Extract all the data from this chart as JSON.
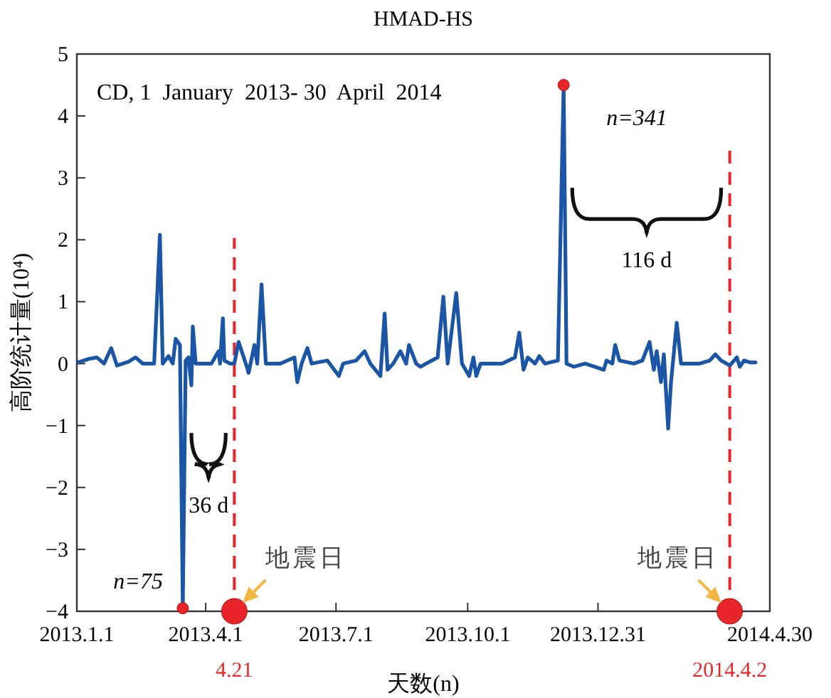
{
  "chart_data": {
    "type": "line",
    "title": "HMAD-HS",
    "xlabel": "天数(n)",
    "ylabel": "高阶统计量(10⁴)",
    "xlim": [
      "2013-01-01",
      "2014-04-30"
    ],
    "ylim": [
      -4,
      5
    ],
    "xticks": [
      {
        "value": "2013-01-01",
        "label": "2013.1.1"
      },
      {
        "value": "2013-04-01",
        "label": "2013.4.1"
      },
      {
        "value": "2013-07-01",
        "label": "2013.7.1"
      },
      {
        "value": "2013-10-01",
        "label": "2013.10.1"
      },
      {
        "value": "2013-12-31",
        "label": "2013.12.31"
      },
      {
        "value": "2014-04-30",
        "label": "2014.4.30"
      }
    ],
    "yticks": [
      -4,
      -3,
      -2,
      -1,
      0,
      1,
      2,
      3,
      4,
      5
    ],
    "series": [
      {
        "type": "line",
        "color": "#1b55a5",
        "x": [
          "2013-01-02",
          "2013-01-10",
          "2013-01-15",
          "2013-01-20",
          "2013-01-25",
          "2013-01-29",
          "2013-02-06",
          "2013-02-11",
          "2013-02-16",
          "2013-02-24",
          "2013-02-28",
          "2013-03-02",
          "2013-03-06",
          "2013-03-09",
          "2013-03-11",
          "2013-03-14",
          "2013-03-16",
          "2013-03-18",
          "2013-03-20",
          "2013-03-22",
          "2013-03-23",
          "2013-03-25",
          "2013-03-30",
          "2013-04-05",
          "2013-04-10",
          "2013-04-11",
          "2013-04-13",
          "2013-04-14",
          "2013-04-18",
          "2013-04-21",
          "2013-04-24",
          "2013-04-29",
          "2013-05-01",
          "2013-05-05",
          "2013-05-07",
          "2013-05-10",
          "2013-05-13",
          "2013-05-23",
          "2013-06-02",
          "2013-06-04",
          "2013-06-07",
          "2013-06-11",
          "2013-06-14",
          "2013-06-25",
          "2013-07-03",
          "2013-07-06",
          "2013-07-15",
          "2013-07-21",
          "2013-07-25",
          "2013-08-01",
          "2013-08-04",
          "2013-08-06",
          "2013-08-10",
          "2013-08-15",
          "2013-08-19",
          "2013-08-21",
          "2013-08-26",
          "2013-08-29",
          "2013-09-02",
          "2013-09-10",
          "2013-09-14",
          "2013-09-17",
          "2013-09-23",
          "2013-09-27",
          "2013-10-02",
          "2013-10-05",
          "2013-10-07",
          "2013-10-10",
          "2013-10-25",
          "2013-11-03",
          "2013-11-06",
          "2013-11-09",
          "2013-11-12",
          "2013-11-17",
          "2013-11-20",
          "2013-11-24",
          "2013-12-03",
          "2013-12-07",
          "2013-12-09",
          "2013-12-14",
          "2013-12-22",
          "2014-01-04",
          "2014-01-06",
          "2014-01-10",
          "2014-01-12",
          "2014-01-15",
          "2014-01-25",
          "2014-01-31",
          "2014-02-05",
          "2014-02-08",
          "2014-02-10",
          "2014-02-13",
          "2014-02-15",
          "2014-02-18",
          "2014-02-20",
          "2014-02-24",
          "2014-02-27",
          "2014-03-12",
          "2014-03-19",
          "2014-03-23",
          "2014-03-27",
          "2014-04-02",
          "2014-04-07",
          "2014-04-09",
          "2014-04-12",
          "2014-04-16",
          "2014-04-20"
        ],
        "values": [
          0.02,
          0.08,
          0.1,
          0,
          0.25,
          -0.03,
          0.03,
          0.1,
          0,
          0,
          2.08,
          0,
          0.12,
          0,
          0.4,
          0.3,
          -3.95,
          0.05,
          0.1,
          -0.35,
          0.6,
          0,
          0,
          0,
          0.2,
          0,
          0.73,
          0.05,
          0,
          0,
          0.35,
          0,
          -0.15,
          0.3,
          0,
          1.28,
          0,
          0,
          0.1,
          -0.3,
          0,
          0.25,
          0,
          0.05,
          -0.2,
          0,
          0.05,
          0.2,
          0,
          -0.2,
          0.81,
          -0.1,
          0,
          0.2,
          0,
          0.3,
          0,
          -0.05,
          0,
          0.1,
          1.08,
          0,
          1.14,
          0,
          -0.2,
          0.1,
          -0.2,
          0,
          0,
          0.1,
          0.5,
          -0.1,
          0.1,
          0,
          0.12,
          0,
          0.05,
          4.5,
          0,
          -0.05,
          0,
          -0.1,
          0.05,
          0,
          0.3,
          0.05,
          0,
          0.05,
          0.35,
          -0.1,
          0.2,
          -0.3,
          0.15,
          -1.05,
          -0.3,
          0.66,
          0,
          0,
          0.05,
          0.15,
          0.05,
          -0.03,
          0.1,
          -0.05,
          0.05,
          0.02,
          0.02
        ]
      },
      {
        "type": "scatter",
        "color": "#e8262a",
        "x": [
          "2013-03-16",
          "2013-12-07"
        ],
        "values": [
          -3.95,
          4.5
        ]
      },
      {
        "type": "scatter",
        "color": "#e8262a",
        "x": [
          "2013-04-21",
          "2014-04-02"
        ],
        "values": [
          -4,
          -4
        ]
      }
    ],
    "ref_lines": [
      {
        "axis": "x",
        "value": "2013-04-21",
        "label": "4.21",
        "color": "#e8262a",
        "line_style": "dashed"
      },
      {
        "axis": "x",
        "value": "2014-04-02",
        "label": "2014.4.2",
        "color": "#e8262a",
        "line_style": "dashed"
      }
    ],
    "annotations": [
      "CD, 1  January  2013- 30  April  2014",
      "36 d",
      "116 d",
      {
        "text": "n=75",
        "x": "2013-03-16",
        "y": -3.95
      },
      {
        "text": "n=341",
        "x": "2013-12-07",
        "y": 4.5
      },
      {
        "text": "地震日",
        "x": "2013-04-21",
        "y": -4
      },
      {
        "text": "地震日",
        "x": "2014-04-02",
        "y": -4
      }
    ]
  }
}
